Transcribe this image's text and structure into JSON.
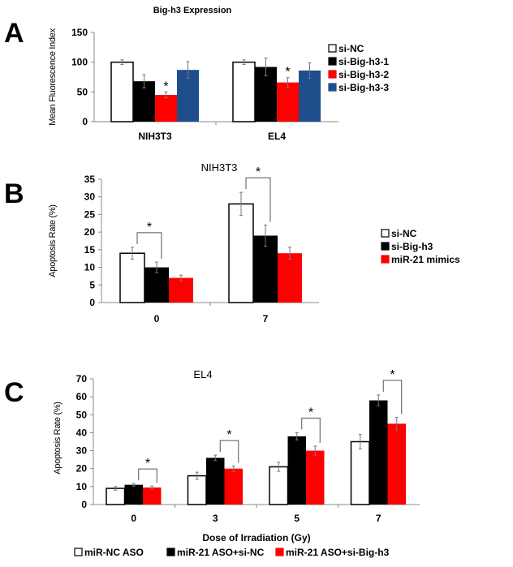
{
  "chart_data": [
    {
      "panel": "A",
      "type": "bar",
      "title": "Big-h3 Expression",
      "xlabel": "",
      "ylabel": "Mean  Fluorescence Index",
      "ylim": [
        0,
        150
      ],
      "yticks": [
        0,
        50,
        100,
        150
      ],
      "categories": [
        "NIH3T3",
        "EL4"
      ],
      "legend_position": "right",
      "series": [
        {
          "name": "si-NC",
          "color": "#ffffff",
          "values": [
            100,
            100
          ],
          "errors": [
            4,
            4
          ]
        },
        {
          "name": "si-Big-h3-1",
          "color": "#000000",
          "values": [
            68,
            92
          ],
          "errors": [
            11,
            15
          ]
        },
        {
          "name": "si-Big-h3-2",
          "color": "#ff0000",
          "values": [
            45,
            66
          ],
          "errors": [
            5,
            8
          ]
        },
        {
          "name": "si-Big-h3-3",
          "color": "#1f4e8c",
          "values": [
            87,
            86
          ],
          "errors": [
            14,
            13
          ]
        }
      ],
      "significance": [
        {
          "category": "NIH3T3",
          "series": "si-Big-h3-2",
          "label": "*"
        },
        {
          "category": "EL4",
          "series": "si-Big-h3-2",
          "label": "*"
        }
      ]
    },
    {
      "panel": "B",
      "type": "bar",
      "title": "NIH3T3",
      "xlabel": "",
      "ylabel": "Apoptosis Rate (%)",
      "ylim": [
        0,
        35
      ],
      "yticks": [
        0,
        5,
        10,
        15,
        20,
        25,
        30,
        35
      ],
      "categories": [
        "0",
        "7"
      ],
      "legend_position": "right",
      "series": [
        {
          "name": "si-NC",
          "color": "#ffffff",
          "values": [
            14,
            28
          ],
          "errors": [
            1.7,
            3.3
          ]
        },
        {
          "name": "si-Big-h3",
          "color": "#000000",
          "values": [
            10,
            19
          ],
          "errors": [
            1.5,
            3
          ]
        },
        {
          "name": "miR-21 mimics",
          "color": "#ff0000",
          "values": [
            7,
            14
          ],
          "errors": [
            0.8,
            1.7
          ]
        }
      ],
      "significance": [
        {
          "category": "0",
          "between": [
            "si-NC",
            "si-Big-h3"
          ],
          "label": "*"
        },
        {
          "category": "7",
          "between": [
            "si-NC",
            "si-Big-h3"
          ],
          "label": "*"
        }
      ]
    },
    {
      "panel": "C",
      "type": "bar",
      "title": "EL4",
      "xlabel": "Dose of Irradiation (Gy)",
      "ylabel": "Apoptosis Rate (%)",
      "ylim": [
        0,
        70
      ],
      "yticks": [
        0,
        10,
        20,
        30,
        40,
        50,
        60,
        70
      ],
      "categories": [
        "0",
        "3",
        "5",
        "7"
      ],
      "legend_position": "bottom",
      "series": [
        {
          "name": "miR-NC ASO",
          "color": "#ffffff",
          "values": [
            9,
            16,
            21,
            35
          ],
          "errors": [
            1,
            2,
            2.5,
            4
          ]
        },
        {
          "name": "miR-21 ASO+si-NC",
          "color": "#000000",
          "values": [
            11,
            26,
            38,
            58
          ],
          "errors": [
            0.7,
            1.5,
            2,
            3
          ]
        },
        {
          "name": "miR-21 ASO+si-Big-h3",
          "color": "#ff0000",
          "values": [
            9.5,
            20,
            30,
            45
          ],
          "errors": [
            0.8,
            1.5,
            2.5,
            3.5
          ]
        }
      ],
      "significance": [
        {
          "category": "0",
          "between": [
            "miR-21 ASO+si-NC",
            "miR-21 ASO+si-Big-h3"
          ],
          "label": "*"
        },
        {
          "category": "3",
          "between": [
            "miR-21 ASO+si-NC",
            "miR-21 ASO+si-Big-h3"
          ],
          "label": "*"
        },
        {
          "category": "5",
          "between": [
            "miR-21 ASO+si-NC",
            "miR-21 ASO+si-Big-h3"
          ],
          "label": "*"
        },
        {
          "category": "7",
          "between": [
            "miR-21 ASO+si-NC",
            "miR-21 ASO+si-Big-h3"
          ],
          "label": "*"
        }
      ]
    }
  ]
}
